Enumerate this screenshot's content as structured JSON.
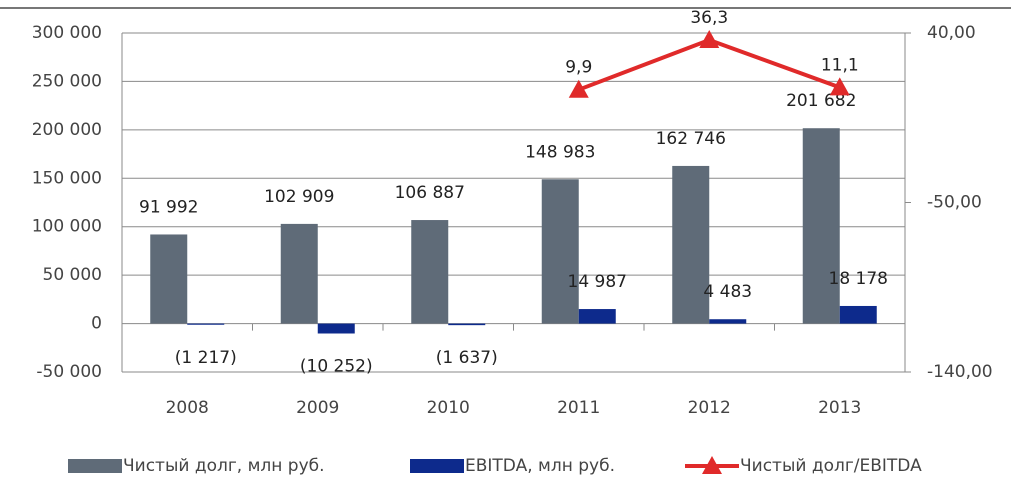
{
  "chart_data": {
    "type": "bar_line",
    "categories": [
      "2008",
      "2009",
      "2010",
      "2011",
      "2012",
      "2013"
    ],
    "series": [
      {
        "name": "Чистый долг, млн руб.",
        "color": "#5f6b78",
        "type": "bar",
        "values": [
          91992,
          102909,
          106887,
          148983,
          162746,
          201682
        ],
        "value_labels": [
          "91 992",
          "102 909",
          "106 887",
          "148 983",
          "162 746",
          "201 682"
        ]
      },
      {
        "name": "EBITDA, млн руб.",
        "color": "#0d2a8c",
        "type": "bar",
        "values": [
          -1217,
          -10252,
          -1637,
          14987,
          4483,
          18178
        ],
        "value_labels": [
          "(1 217)",
          "(10 252)",
          "(1 637)",
          "14 987",
          "4 483",
          "18 178"
        ]
      },
      {
        "name": "Чистый долг/EBITDA",
        "color": "#e02a2a",
        "type": "line",
        "axis": "y2",
        "values": [
          null,
          null,
          null,
          9.9,
          36.3,
          11.1
        ],
        "value_labels": [
          null,
          null,
          null,
          "9,9",
          "36,3",
          "11,1"
        ]
      }
    ],
    "ylim": [
      -50000,
      300000
    ],
    "yticks": [
      {
        "value": -50000,
        "label": "-50 000"
      },
      0,
      {
        "value": 50000,
        "label": "50 000"
      },
      {
        "value": 100000,
        "label": "100 000"
      },
      {
        "value": 150000,
        "label": "150 000"
      },
      {
        "value": 200000,
        "label": "200 000"
      },
      {
        "value": 250000,
        "label": "250 000"
      },
      {
        "value": 300000,
        "label": "300 000"
      }
    ],
    "y2lim": [
      -140,
      40
    ],
    "y2ticks": [
      {
        "value": -140,
        "label": "-140,00"
      },
      {
        "value": -50,
        "label": "-50,00"
      },
      {
        "value": 40,
        "label": "40,00"
      }
    ],
    "grid": true,
    "legend": "bottom"
  }
}
